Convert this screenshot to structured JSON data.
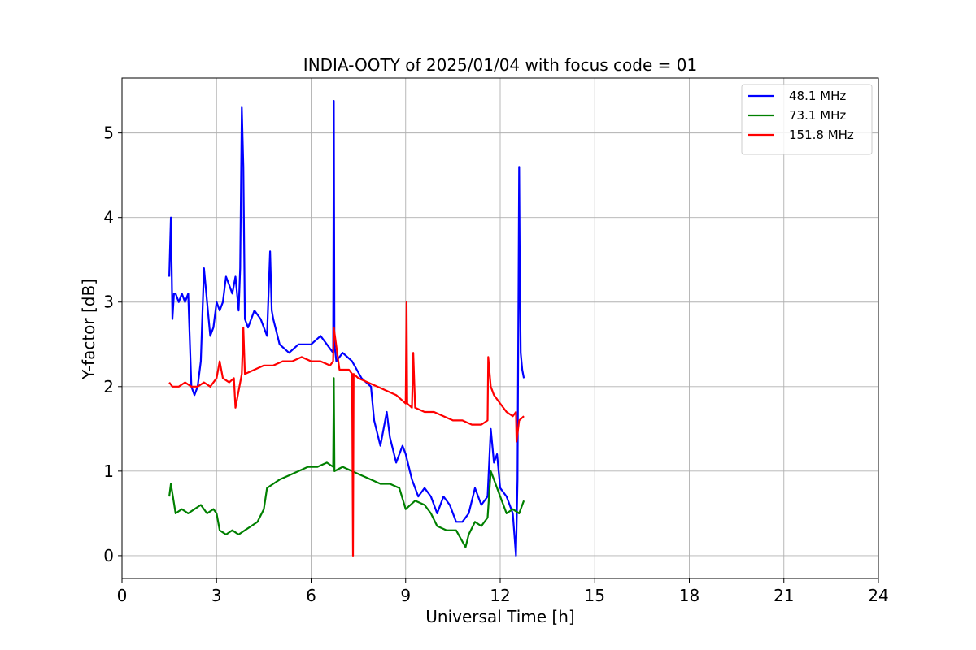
{
  "chart_data": {
    "type": "line",
    "title": "INDIA-OOTY of 2025/01/04 with focus code = 01",
    "xlabel": "Universal Time [h]",
    "ylabel": "Y-factor [dB]",
    "xlim": [
      0,
      24
    ],
    "ylim": [
      -0.27,
      5.65
    ],
    "xticks": [
      0,
      3,
      6,
      9,
      12,
      15,
      18,
      21,
      24
    ],
    "yticks": [
      0,
      1,
      2,
      3,
      4,
      5
    ],
    "grid": true,
    "legend_position": "top-right",
    "series": [
      {
        "name": "  48.1 MHz",
        "color": "#0000ff",
        "x": [
          1.5,
          1.55,
          1.6,
          1.65,
          1.7,
          1.8,
          1.9,
          2.0,
          2.1,
          2.2,
          2.3,
          2.4,
          2.5,
          2.6,
          2.7,
          2.8,
          2.9,
          3.0,
          3.1,
          3.2,
          3.3,
          3.4,
          3.5,
          3.6,
          3.7,
          3.75,
          3.8,
          3.85,
          3.9,
          4.0,
          4.2,
          4.4,
          4.6,
          4.7,
          4.75,
          4.8,
          5.0,
          5.3,
          5.6,
          6.0,
          6.3,
          6.5,
          6.7,
          6.72,
          6.74,
          6.8,
          7.0,
          7.3,
          7.6,
          7.9,
          8.0,
          8.2,
          8.4,
          8.5,
          8.7,
          8.9,
          9.0,
          9.2,
          9.4,
          9.6,
          9.8,
          10.0,
          10.2,
          10.4,
          10.6,
          10.8,
          11.0,
          11.2,
          11.4,
          11.6,
          11.7,
          11.8,
          11.9,
          12.0,
          12.2,
          12.4,
          12.5,
          12.55,
          12.6,
          12.62,
          12.65,
          12.7,
          12.75
        ],
        "y": [
          3.3,
          4.0,
          2.8,
          3.1,
          3.1,
          3.0,
          3.1,
          3.0,
          3.1,
          2.0,
          1.9,
          2.0,
          2.3,
          3.4,
          3.0,
          2.6,
          2.7,
          3.0,
          2.9,
          3.0,
          3.3,
          3.2,
          3.1,
          3.3,
          2.9,
          3.4,
          5.3,
          4.6,
          2.8,
          2.7,
          2.9,
          2.8,
          2.6,
          3.6,
          2.9,
          2.8,
          2.5,
          2.4,
          2.5,
          2.5,
          2.6,
          2.5,
          2.4,
          5.38,
          2.5,
          2.3,
          2.4,
          2.3,
          2.1,
          2.0,
          1.6,
          1.3,
          1.7,
          1.4,
          1.1,
          1.3,
          1.2,
          0.9,
          0.7,
          0.8,
          0.7,
          0.5,
          0.7,
          0.6,
          0.4,
          0.4,
          0.5,
          0.8,
          0.6,
          0.7,
          1.5,
          1.1,
          1.2,
          0.8,
          0.7,
          0.5,
          0.0,
          0.9,
          4.6,
          3.5,
          2.4,
          2.2,
          2.1
        ]
      },
      {
        "name": "  73.1 MHz",
        "color": "#008000",
        "x": [
          1.5,
          1.55,
          1.7,
          1.9,
          2.1,
          2.3,
          2.5,
          2.7,
          2.9,
          3.0,
          3.1,
          3.3,
          3.5,
          3.7,
          3.9,
          4.1,
          4.3,
          4.5,
          4.6,
          4.8,
          5.0,
          5.3,
          5.6,
          5.9,
          6.2,
          6.5,
          6.7,
          6.72,
          6.74,
          7.0,
          7.3,
          7.6,
          7.9,
          8.2,
          8.5,
          8.8,
          9.0,
          9.3,
          9.6,
          9.8,
          10.0,
          10.3,
          10.6,
          10.9,
          11.0,
          11.2,
          11.4,
          11.6,
          11.7,
          11.8,
          12.0,
          12.2,
          12.4,
          12.6,
          12.75
        ],
        "y": [
          0.7,
          0.85,
          0.5,
          0.55,
          0.5,
          0.55,
          0.6,
          0.5,
          0.55,
          0.5,
          0.3,
          0.25,
          0.3,
          0.25,
          0.3,
          0.35,
          0.4,
          0.55,
          0.8,
          0.85,
          0.9,
          0.95,
          1.0,
          1.05,
          1.05,
          1.1,
          1.05,
          2.1,
          1.0,
          1.05,
          1.0,
          0.95,
          0.9,
          0.85,
          0.85,
          0.8,
          0.55,
          0.65,
          0.6,
          0.5,
          0.35,
          0.3,
          0.3,
          0.1,
          0.25,
          0.4,
          0.35,
          0.45,
          1.0,
          0.9,
          0.7,
          0.5,
          0.55,
          0.5,
          0.65
        ]
      },
      {
        "name": "151.8 MHz",
        "color": "#ff0000",
        "x": [
          1.5,
          1.6,
          1.8,
          2.0,
          2.2,
          2.4,
          2.6,
          2.8,
          3.0,
          3.1,
          3.2,
          3.4,
          3.55,
          3.6,
          3.8,
          3.85,
          3.9,
          4.2,
          4.5,
          4.8,
          5.1,
          5.4,
          5.7,
          6.0,
          6.3,
          6.6,
          6.7,
          6.72,
          6.9,
          7.2,
          7.3,
          7.33,
          7.35,
          7.5,
          7.8,
          8.1,
          8.4,
          8.7,
          9.0,
          9.03,
          9.05,
          9.2,
          9.24,
          9.3,
          9.6,
          9.9,
          10.2,
          10.5,
          10.8,
          11.1,
          11.4,
          11.6,
          11.62,
          11.7,
          11.8,
          12.0,
          12.2,
          12.4,
          12.5,
          12.52,
          12.6,
          12.75
        ],
        "y": [
          2.05,
          2.0,
          2.0,
          2.05,
          2.0,
          2.0,
          2.05,
          2.0,
          2.1,
          2.3,
          2.1,
          2.05,
          2.1,
          1.75,
          2.15,
          2.7,
          2.15,
          2.2,
          2.25,
          2.25,
          2.3,
          2.3,
          2.35,
          2.3,
          2.3,
          2.25,
          2.3,
          2.7,
          2.2,
          2.2,
          2.15,
          0.0,
          2.15,
          2.1,
          2.05,
          2.0,
          1.95,
          1.9,
          1.8,
          3.0,
          1.8,
          1.75,
          2.4,
          1.75,
          1.7,
          1.7,
          1.65,
          1.6,
          1.6,
          1.55,
          1.55,
          1.6,
          2.35,
          2.0,
          1.9,
          1.8,
          1.7,
          1.65,
          1.7,
          1.35,
          1.6,
          1.65
        ]
      }
    ]
  }
}
